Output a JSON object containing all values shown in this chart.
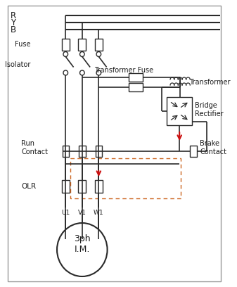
{
  "bg_color": "#ffffff",
  "line_color": "#2a2a2a",
  "red_color": "#cc1111",
  "dash_color": "#cc6622",
  "text_color": "#1a1a1a",
  "figsize": [
    3.37,
    4.08
  ],
  "dpi": 100,
  "phases": [
    "R",
    "Y",
    "B"
  ],
  "labels": {
    "fuse": "Fuse",
    "isolator": "Isolator",
    "transformer_fuse": "Transformer Fuse",
    "transformer": "Transformer",
    "bridge_rectifier": "Bridge\nRectifier",
    "run_contact": "Run\nContact",
    "brake_contact": "Brake\nContact",
    "olr": "OLR",
    "motor": "3ph\nI.M.",
    "u1": "U1",
    "v1": "V1",
    "w1": "W1"
  }
}
